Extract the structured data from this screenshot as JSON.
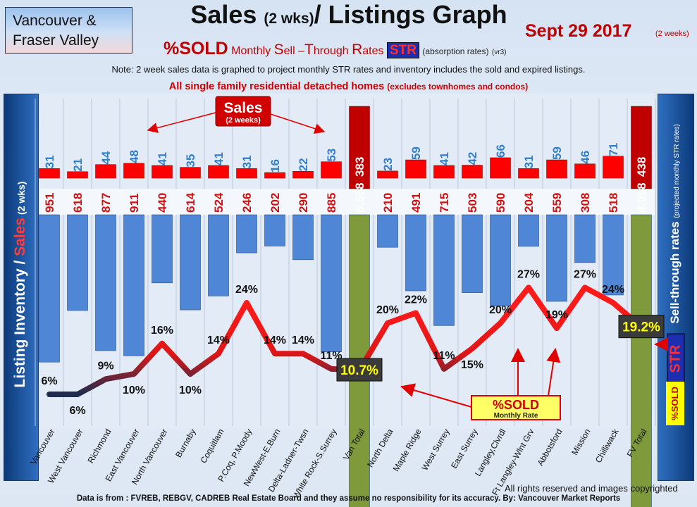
{
  "header": {
    "region_line1": "Vancouver &",
    "region_line2": "Fraser Valley",
    "title_main": "Sales",
    "title_small": "(2 wks)",
    "title_rest": "/ Listings Graph",
    "date": "Sept 29 2017",
    "date_sub": "(2 weeks)",
    "subtitle_sold": "%SOLD",
    "subtitle_monthly": "Monthly",
    "subtitle_s": "S",
    "subtitle_ell": "ell",
    "subtitle_dash": " –",
    "subtitle_t": "T",
    "subtitle_hrough": "hrough ",
    "subtitle_r": "R",
    "subtitle_ates": "ates",
    "subtitle_str": "STR",
    "subtitle_absorption": "(absorption rates)",
    "subtitle_version": "(vr3)",
    "note": "Note: 2 week sales data is graphed to project monthly STR rates and inventory includes the sold and expired listings.",
    "scope_main": "All single family residential detached homes",
    "scope_paren": "(excludes townhomes and condos)"
  },
  "side": {
    "left_listing": "Listing Inventory / ",
    "left_sales": "Sales",
    "left_small": " (2 wks)",
    "right_main": "Sell-through rates",
    "right_small": "(projected monthly STR rates)",
    "right_str": "STR",
    "right_sold": "%SOLD"
  },
  "annotations": {
    "sales_tag_title": "Sales",
    "sales_tag_sub": "(2 weeks)",
    "sold_tag_title": "%SOLD",
    "sold_tag_sub": "Monthly Rate"
  },
  "footer": {
    "copyright": "All rights reserved and  images copyrighted",
    "source": "Data is from : FVREB, REBGV, CADREB Real Estate Board and they assume no responsibility for its accuracy. By: Vancouver Market Reports"
  },
  "colors": {
    "sales_bar": "#ff0000",
    "total_bar": "#c00000",
    "inventory_bar": "#4f86d6",
    "total_inventory_bar": "#7f9a3a",
    "str_line_high": "#ff1a1a",
    "str_line_low": "#1c2d4e",
    "value_label": "#2f7fd0"
  },
  "chart_data": {
    "type": "bar",
    "categories": [
      "Vancouver",
      "West Vancouver",
      "Richmond",
      "East Vancouver",
      "North Vancouver",
      "Burnaby",
      "Coquitlam",
      "P.Coq, P.Moody",
      "NewWest-E.Burn",
      "Delta-Ladner-Twsn",
      "White Rock-S.Surrey",
      "Van Total",
      "North Delta",
      "Maple Ridge",
      "West Surrey",
      "East Surrey",
      "Langley,Clvrdl",
      "Ft Langley-Wlnt Grv",
      "Abbotsford",
      "Mission",
      "Chilliwack",
      "FV Total"
    ],
    "series": [
      {
        "name": "Sales",
        "values": [
          31,
          21,
          44,
          48,
          41,
          35,
          41,
          31,
          16,
          22,
          53,
          383,
          23,
          59,
          41,
          42,
          66,
          31,
          59,
          46,
          71,
          438
        ]
      },
      {
        "name": "Listing Inventory",
        "values": [
          "951",
          "618",
          "877",
          "911",
          "440",
          "614",
          "524",
          "246",
          "202",
          "290",
          "885",
          "6,558",
          "210",
          "491",
          "715",
          "503",
          "590",
          "204",
          "559",
          "308",
          "518",
          "4,098"
        ]
      },
      {
        "name": "%SOLD Monthly Rate",
        "values": [
          "6%",
          "6%",
          "9%",
          "10%",
          "16%",
          "10%",
          "14%",
          "24%",
          "14%",
          "14%",
          "11%",
          "10.7%",
          "20%",
          "22%",
          "11%",
          "15%",
          "20%",
          "27%",
          "19%",
          "27%",
          "24%",
          "19.2%"
        ]
      }
    ],
    "totals": [
      "Van Total",
      "FV Total"
    ]
  }
}
